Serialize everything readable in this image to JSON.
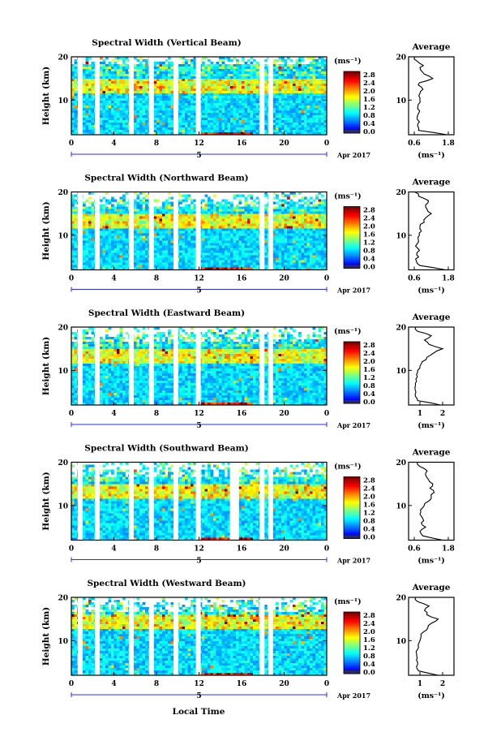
{
  "figure": {
    "xlabel": "Local Time",
    "day_label": "5",
    "date_label": "Apr 2017",
    "ylabel": "Height (km)",
    "unit_label": "(ms⁻¹)",
    "avg_title": "Average"
  },
  "chart_data": [
    {
      "type": "heatmap",
      "title": "Spectral Width (Vertical Beam)",
      "xlabel": "Local Time",
      "ylabel": "Height (km)",
      "x_ticks": [
        "0",
        "4",
        "8",
        "12",
        "16",
        "20",
        "0"
      ],
      "xlim": [
        0,
        24
      ],
      "y_ticks": [
        "20",
        "10"
      ],
      "ylim": [
        2,
        20
      ],
      "colorbar": {
        "label": "(ms⁻¹)",
        "ticks": [
          "2.8",
          "2.4",
          "2.0",
          "1.6",
          "1.2",
          "0.8",
          "0.4",
          "0.0"
        ],
        "range": [
          0.0,
          3.0
        ]
      },
      "data_gaps_hours": [
        0.6,
        2.2,
        5.4,
        7.3,
        9.6,
        11.7,
        17.7,
        18.5
      ],
      "average_profile": {
        "title": "Average",
        "xlabel": "(ms⁻¹)",
        "x_ticks": [
          "0.6",
          "1.8"
        ],
        "xlim": [
          0.4,
          2.0
        ],
        "heights": [
          2,
          3,
          4,
          5,
          6,
          7,
          8,
          9,
          10,
          11,
          12,
          13,
          14,
          15,
          16,
          17,
          18,
          19,
          20
        ],
        "values": [
          1.75,
          0.75,
          0.72,
          0.78,
          0.7,
          0.76,
          0.72,
          0.74,
          0.8,
          0.76,
          0.82,
          0.85,
          0.78,
          1.25,
          0.95,
          0.82,
          0.92,
          0.7,
          0.62
        ]
      }
    },
    {
      "type": "heatmap",
      "title": "Spectral Width (Northward Beam)",
      "xlabel": "Local Time",
      "ylabel": "Height (km)",
      "x_ticks": [
        "0",
        "4",
        "8",
        "12",
        "16",
        "20",
        "0"
      ],
      "xlim": [
        0,
        24
      ],
      "y_ticks": [
        "20",
        "10"
      ],
      "ylim": [
        2,
        20
      ],
      "colorbar": {
        "label": "(ms⁻¹)",
        "ticks": [
          "2.8",
          "2.4",
          "2.0",
          "1.6",
          "1.2",
          "0.8",
          "0.4",
          "0.0"
        ],
        "range": [
          0.0,
          3.0
        ]
      },
      "data_gaps_hours": [
        0.6,
        2.2,
        5.4,
        7.3,
        9.6,
        11.7,
        17.7,
        18.5
      ],
      "average_profile": {
        "title": "Average",
        "xlabel": "(ms⁻¹)",
        "x_ticks": [
          "0.6",
          "1.8"
        ],
        "xlim": [
          0.4,
          2.0
        ],
        "heights": [
          2,
          3,
          4,
          5,
          6,
          7,
          8,
          9,
          10,
          11,
          12,
          13,
          14,
          15,
          16,
          17,
          18,
          19,
          20
        ],
        "values": [
          1.7,
          0.8,
          0.68,
          0.75,
          0.7,
          0.72,
          0.7,
          0.74,
          0.78,
          0.85,
          0.8,
          0.95,
          1.0,
          1.2,
          1.05,
          1.0,
          1.1,
          0.75,
          0.62
        ]
      }
    },
    {
      "type": "heatmap",
      "title": "Spectral Width (Eastward Beam)",
      "xlabel": "Local Time",
      "ylabel": "Height (km)",
      "x_ticks": [
        "0",
        "4",
        "8",
        "12",
        "16",
        "20",
        "0"
      ],
      "xlim": [
        0,
        24
      ],
      "y_ticks": [
        "20",
        "10"
      ],
      "ylim": [
        2,
        20
      ],
      "colorbar": {
        "label": "(ms⁻¹)",
        "ticks": [
          "2.8",
          "2.4",
          "2.0",
          "1.6",
          "1.2",
          "0.8",
          "0.4",
          "0.0"
        ],
        "range": [
          0.0,
          3.0
        ]
      },
      "data_gaps_hours": [
        0.6,
        2.2,
        5.4,
        7.3,
        9.6,
        11.7,
        17.7,
        18.5
      ],
      "average_profile": {
        "title": "Average",
        "xlabel": "(ms⁻¹)",
        "x_ticks": [
          "1",
          "2"
        ],
        "xlim": [
          0.5,
          2.5
        ],
        "heights": [
          2,
          3,
          4,
          5,
          6,
          7,
          8,
          9,
          10,
          11,
          12,
          13,
          14,
          15,
          16,
          17,
          18,
          19,
          20
        ],
        "values": [
          1.9,
          0.9,
          0.8,
          0.82,
          0.78,
          0.8,
          0.82,
          0.85,
          0.9,
          1.0,
          1.1,
          1.3,
          1.6,
          2.0,
          1.4,
          1.2,
          1.5,
          0.9,
          0.8
        ]
      }
    },
    {
      "type": "heatmap",
      "title": "Spectral Width (Southward Beam)",
      "xlabel": "Local Time",
      "ylabel": "Height (km)",
      "x_ticks": [
        "0",
        "4",
        "8",
        "12",
        "16",
        "20",
        "0"
      ],
      "xlim": [
        0,
        24
      ],
      "y_ticks": [
        "20",
        "10"
      ],
      "ylim": [
        2,
        20
      ],
      "colorbar": {
        "label": "(ms⁻¹)",
        "ticks": [
          "2.8",
          "2.4",
          "2.0",
          "1.6",
          "1.2",
          "0.8",
          "0.4",
          "0.0"
        ],
        "range": [
          0.0,
          3.0
        ]
      },
      "data_gaps_hours": [
        0.6,
        2.2,
        5.4,
        7.3,
        9.6,
        11.7,
        14.9,
        15.3,
        17.7,
        18.5
      ],
      "average_profile": {
        "title": "Average",
        "xlabel": "(ms⁻¹)",
        "x_ticks": [
          "0.6",
          "1.8"
        ],
        "xlim": [
          0.4,
          2.0
        ],
        "heights": [
          2,
          3,
          4,
          5,
          6,
          7,
          8,
          9,
          10,
          11,
          12,
          13,
          14,
          15,
          16,
          17,
          18,
          19,
          20
        ],
        "values": [
          1.6,
          0.9,
          0.8,
          1.0,
          0.85,
          0.9,
          0.8,
          0.82,
          0.95,
          1.1,
          1.2,
          1.3,
          1.15,
          1.25,
          1.1,
          1.0,
          1.05,
          0.8,
          0.7
        ]
      }
    },
    {
      "type": "heatmap",
      "title": "Spectral Width (Westward Beam)",
      "xlabel": "Local Time",
      "ylabel": "Height (km)",
      "x_ticks": [
        "0",
        "4",
        "8",
        "12",
        "16",
        "20",
        "0"
      ],
      "xlim": [
        0,
        24
      ],
      "y_ticks": [
        "20",
        "10"
      ],
      "ylim": [
        2,
        20
      ],
      "colorbar": {
        "label": "(ms⁻¹)",
        "ticks": [
          "2.8",
          "2.4",
          "2.0",
          "1.6",
          "1.2",
          "0.8",
          "0.4",
          "0.0"
        ],
        "range": [
          0.0,
          3.0
        ]
      },
      "data_gaps_hours": [
        0.6,
        2.2,
        5.4,
        7.3,
        9.6,
        11.7,
        17.7,
        18.5
      ],
      "average_profile": {
        "title": "Average",
        "xlabel": "(ms⁻¹)",
        "x_ticks": [
          "1",
          "2"
        ],
        "xlim": [
          0.5,
          2.5
        ],
        "heights": [
          2,
          3,
          4,
          5,
          6,
          7,
          8,
          9,
          10,
          11,
          12,
          13,
          14,
          15,
          16,
          17,
          18,
          19,
          20
        ],
        "values": [
          1.8,
          0.95,
          0.85,
          0.9,
          0.88,
          0.85,
          0.9,
          0.92,
          1.0,
          1.05,
          1.15,
          1.35,
          1.5,
          1.8,
          1.3,
          1.2,
          1.4,
          0.9,
          0.8
        ]
      }
    }
  ]
}
